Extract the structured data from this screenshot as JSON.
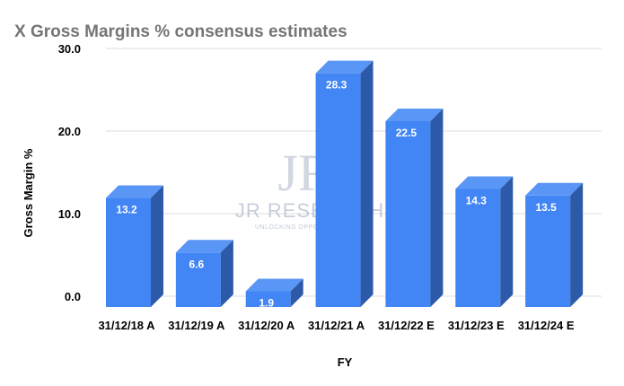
{
  "chart_data": {
    "type": "bar",
    "title": "X Gross Margins % consensus estimates",
    "xlabel": "FY",
    "ylabel": "Gross Margin %",
    "categories": [
      "31/12/18 A",
      "31/12/19 A",
      "31/12/20 A",
      "31/12/21 A",
      "31/12/22 E",
      "31/12/23 E",
      "31/12/24 E"
    ],
    "values": [
      13.2,
      6.6,
      1.9,
      28.3,
      22.5,
      14.3,
      13.5
    ],
    "value_labels": [
      "13.2",
      "6.6",
      "1.9",
      "28.3",
      "22.5",
      "14.3",
      "13.5"
    ],
    "yticks": [
      0,
      10,
      20,
      30
    ],
    "ytick_labels": [
      "0.0",
      "10.0",
      "20.0",
      "30.0"
    ],
    "ylim": [
      0,
      30
    ],
    "grid": true,
    "legend": "none",
    "bar_style": "3d"
  },
  "colors": {
    "bar_front": "#4285f4",
    "bar_top": "#5a96f5",
    "bar_side": "#2c5aa8",
    "gridline": "#dddddd",
    "title": "#757575"
  },
  "watermark": {
    "logo_text": "JR",
    "main_text": "JR RESEARCH",
    "sub_text": "UNLOCKING OPPORTUNITIES"
  }
}
